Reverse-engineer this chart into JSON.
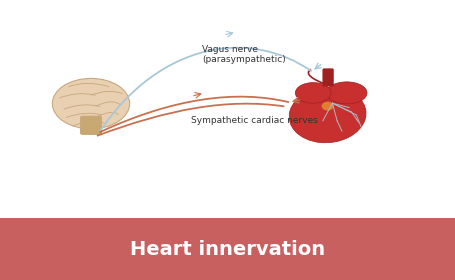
{
  "title": "Heart innervation",
  "title_bg_color": "#c96060",
  "title_text_color": "#ffffff",
  "bg_color": "#ffffff",
  "vagus_label": "Vagus nerve\n(parasympathetic)",
  "sympathetic_label": "Sympathetic cardiac nerves",
  "vagus_color": "#a8c8d8",
  "sympathetic_color": "#c87050",
  "label_fontsize": 6.5,
  "title_fontsize": 14,
  "brain_color": "#e8d0b0",
  "brain_outline": "#c8a880",
  "heart_color": "#c83030",
  "heart_dark": "#a02020",
  "nerve_color": "#b0b8c0"
}
